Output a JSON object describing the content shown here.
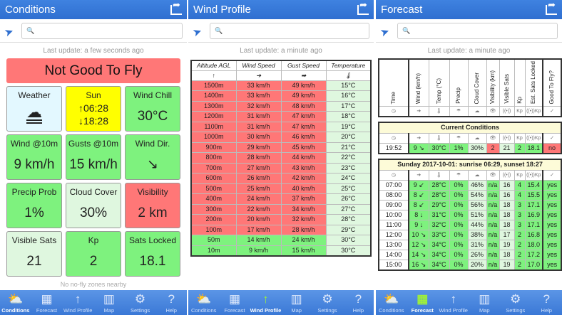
{
  "colors": {
    "header": "#3a78d6",
    "green": "#7ef27e",
    "light_green": "#dff7df",
    "red": "#ff7777",
    "yellow": "#ffff00"
  },
  "nav": [
    {
      "label": "Conditions",
      "icon": "cloud-sun-icon"
    },
    {
      "label": "Forecast",
      "icon": "calendar-icon"
    },
    {
      "label": "Wind Profile",
      "icon": "arrow-up-icon"
    },
    {
      "label": "Map",
      "icon": "map-icon"
    },
    {
      "label": "Settings",
      "icon": "gear-icon"
    },
    {
      "label": "Help",
      "icon": "help-icon"
    }
  ],
  "conditions": {
    "title": "Conditions",
    "last_update": "Last update: a few seconds ago",
    "verdict": "Not Good To Fly",
    "no_fly": "No no-fly zones nearby",
    "tiles": [
      {
        "label": "Weather",
        "value": "",
        "icon": "fog-cloud-icon",
        "color": "lb"
      },
      {
        "label": "Sun",
        "sunrise": "↑06:28",
        "sunset": "↓18:28",
        "color": "y"
      },
      {
        "label": "Wind Chill",
        "value": "30°C",
        "color": "g"
      },
      {
        "label": "Wind @10m",
        "value": "9 km/h",
        "color": "g"
      },
      {
        "label": "Gusts @10m",
        "value": "15 km/h",
        "color": "g"
      },
      {
        "label": "Wind Dir.",
        "value": "↘",
        "color": "g"
      },
      {
        "label": "Precip Prob",
        "value": "1%",
        "color": "g"
      },
      {
        "label": "Cloud Cover",
        "value": "30%",
        "color": "lg"
      },
      {
        "label": "Visibility",
        "value": "2 km",
        "color": "r"
      },
      {
        "label": "Visible Sats",
        "value": "21",
        "color": "lg"
      },
      {
        "label": "Kp",
        "value": "2",
        "color": "g"
      },
      {
        "label": "Sats Locked",
        "value": "18.1",
        "color": "g"
      }
    ]
  },
  "wind_profile": {
    "title": "Wind Profile",
    "last_update": "Last update: a minute ago",
    "headers": [
      "Altitude AGL",
      "Wind Speed",
      "Gust Speed",
      "Temperature"
    ],
    "header_icons": [
      "↑",
      "➔",
      "➡",
      "🌡"
    ],
    "rows": [
      [
        "1500m",
        "33 km/h",
        "49 km/h",
        "15°C",
        "r"
      ],
      [
        "1400m",
        "33 km/h",
        "49 km/h",
        "16°C",
        "r"
      ],
      [
        "1300m",
        "32 km/h",
        "48 km/h",
        "17°C",
        "r"
      ],
      [
        "1200m",
        "31 km/h",
        "47 km/h",
        "18°C",
        "r"
      ],
      [
        "1100m",
        "31 km/h",
        "47 km/h",
        "19°C",
        "r"
      ],
      [
        "1000m",
        "30 km/h",
        "46 km/h",
        "20°C",
        "r"
      ],
      [
        "900m",
        "29 km/h",
        "45 km/h",
        "21°C",
        "r"
      ],
      [
        "800m",
        "28 km/h",
        "44 km/h",
        "22°C",
        "r"
      ],
      [
        "700m",
        "27 km/h",
        "43 km/h",
        "23°C",
        "r"
      ],
      [
        "600m",
        "26 km/h",
        "42 km/h",
        "24°C",
        "r"
      ],
      [
        "500m",
        "25 km/h",
        "40 km/h",
        "25°C",
        "r"
      ],
      [
        "400m",
        "24 km/h",
        "37 km/h",
        "26°C",
        "r"
      ],
      [
        "300m",
        "22 km/h",
        "34 km/h",
        "27°C",
        "r"
      ],
      [
        "200m",
        "20 km/h",
        "32 km/h",
        "28°C",
        "r"
      ],
      [
        "100m",
        "17 km/h",
        "28 km/h",
        "29°C",
        "r"
      ],
      [
        "50m",
        "14 km/h",
        "24 km/h",
        "30°C",
        "g"
      ],
      [
        "10m",
        "9 km/h",
        "15 km/h",
        "30°C",
        "g"
      ]
    ]
  },
  "forecast": {
    "title": "Forecast",
    "last_update": "Last update: a minute ago",
    "headers": [
      "Time",
      "Wind (km/h)",
      "Temp (°C)",
      "Precip",
      "Cloud Cover",
      "Visibility (km)",
      "Visible Sats",
      "Kp",
      "Est. Sats Locked",
      "Good To Fly?"
    ],
    "icons": [
      "◷",
      "➔",
      "🌡",
      "☂",
      "☁",
      "👁",
      "((•))",
      "Kp",
      "((•))Kp",
      "✓"
    ],
    "current_title": "Current Conditions",
    "current": {
      "cells": [
        "19:52",
        "9 ↘",
        "30°C",
        "1%",
        "30%",
        "2",
        "21",
        "2",
        "18.1",
        "no"
      ],
      "colors": [
        "w",
        "g",
        "g",
        "g",
        "lg",
        "r",
        "lg",
        "g",
        "g",
        "r"
      ]
    },
    "day_title": "Sunday 2017-10-01: sunrise 06:29, sunset 18:27",
    "rows": [
      [
        "07:00",
        "9 ↙",
        "28°C",
        "0%",
        "46%",
        "n/a",
        "16",
        "4",
        "15.4",
        "yes"
      ],
      [
        "08:00",
        "8 ↙",
        "28°C",
        "0%",
        "54%",
        "n/a",
        "16",
        "4",
        "15.5",
        "yes"
      ],
      [
        "09:00",
        "8 ↙",
        "29°C",
        "0%",
        "56%",
        "n/a",
        "18",
        "3",
        "17.1",
        "yes"
      ],
      [
        "10:00",
        "8 ↓",
        "31°C",
        "0%",
        "51%",
        "n/a",
        "18",
        "3",
        "16.9",
        "yes"
      ],
      [
        "11:00",
        "9 ↓",
        "32°C",
        "0%",
        "44%",
        "n/a",
        "18",
        "3",
        "17.1",
        "yes"
      ],
      [
        "12:00",
        "10 ↘",
        "33°C",
        "0%",
        "38%",
        "n/a",
        "17",
        "2",
        "16.8",
        "yes"
      ],
      [
        "13:00",
        "12 ↘",
        "34°C",
        "0%",
        "31%",
        "n/a",
        "19",
        "2",
        "18.0",
        "yes"
      ],
      [
        "14:00",
        "14 ↘",
        "34°C",
        "0%",
        "26%",
        "n/a",
        "18",
        "2",
        "17.2",
        "yes"
      ],
      [
        "15:00",
        "16 ↘",
        "34°C",
        "0%",
        "20%",
        "n/a",
        "19",
        "2",
        "17.0",
        "yes"
      ]
    ],
    "row_colors": [
      "w",
      "g",
      "g",
      "g",
      "lg",
      "g",
      "lg",
      "g",
      "g",
      "g"
    ]
  }
}
